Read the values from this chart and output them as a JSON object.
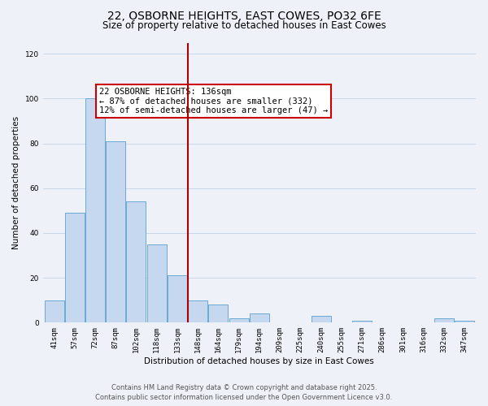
{
  "title": "22, OSBORNE HEIGHTS, EAST COWES, PO32 6FE",
  "subtitle": "Size of property relative to detached houses in East Cowes",
  "xlabel": "Distribution of detached houses by size in East Cowes",
  "ylabel": "Number of detached properties",
  "bar_labels": [
    "41sqm",
    "57sqm",
    "72sqm",
    "87sqm",
    "102sqm",
    "118sqm",
    "133sqm",
    "148sqm",
    "164sqm",
    "179sqm",
    "194sqm",
    "209sqm",
    "225sqm",
    "240sqm",
    "255sqm",
    "271sqm",
    "286sqm",
    "301sqm",
    "316sqm",
    "332sqm",
    "347sqm"
  ],
  "bar_values": [
    10,
    49,
    100,
    81,
    54,
    35,
    21,
    10,
    8,
    2,
    4,
    0,
    0,
    3,
    0,
    1,
    0,
    0,
    0,
    2,
    1
  ],
  "bar_color": "#c5d8f0",
  "bar_edge_color": "#6aaad4",
  "grid_color": "#c8d8e8",
  "background_color": "#eef2f8",
  "vline_x_index": 6.5,
  "vline_color": "#aa0000",
  "annotation_text": "22 OSBORNE HEIGHTS: 136sqm\n← 87% of detached houses are smaller (332)\n12% of semi-detached houses are larger (47) →",
  "annotation_box_facecolor": "#ffffff",
  "annotation_box_edgecolor": "#cc0000",
  "ylim": [
    0,
    125
  ],
  "yticks": [
    0,
    20,
    40,
    60,
    80,
    100,
    120
  ],
  "footer_line1": "Contains HM Land Registry data © Crown copyright and database right 2025.",
  "footer_line2": "Contains public sector information licensed under the Open Government Licence v3.0.",
  "title_fontsize": 10,
  "subtitle_fontsize": 8.5,
  "axis_label_fontsize": 7.5,
  "tick_fontsize": 6.5,
  "annotation_fontsize": 7.5,
  "footer_fontsize": 6.0
}
